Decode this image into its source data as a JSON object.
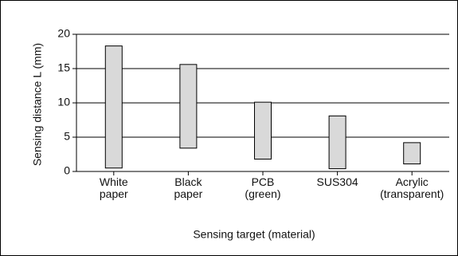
{
  "chart_data": {
    "type": "bar",
    "title": "",
    "xlabel": "Sensing target (material)",
    "ylabel": "Sensing distance L (mm)",
    "ylim": [
      0,
      20
    ],
    "yticks": [
      0,
      5,
      10,
      15,
      20
    ],
    "grid": true,
    "colors": {
      "bar_fill": "#d9d9d9",
      "bar_stroke": "#000000",
      "axis": "#000000",
      "grid": "#000000"
    },
    "categories": [
      {
        "label_lines": [
          "White",
          "paper"
        ],
        "low": 0.5,
        "high": 18.3
      },
      {
        "label_lines": [
          "Black",
          "paper"
        ],
        "low": 3.4,
        "high": 15.6
      },
      {
        "label_lines": [
          "PCB",
          "(green)"
        ],
        "low": 1.8,
        "high": 10.1
      },
      {
        "label_lines": [
          "SUS304"
        ],
        "low": 0.4,
        "high": 8.1
      },
      {
        "label_lines": [
          "Acrylic",
          "(transparent)"
        ],
        "low": 1.1,
        "high": 4.2
      }
    ]
  }
}
